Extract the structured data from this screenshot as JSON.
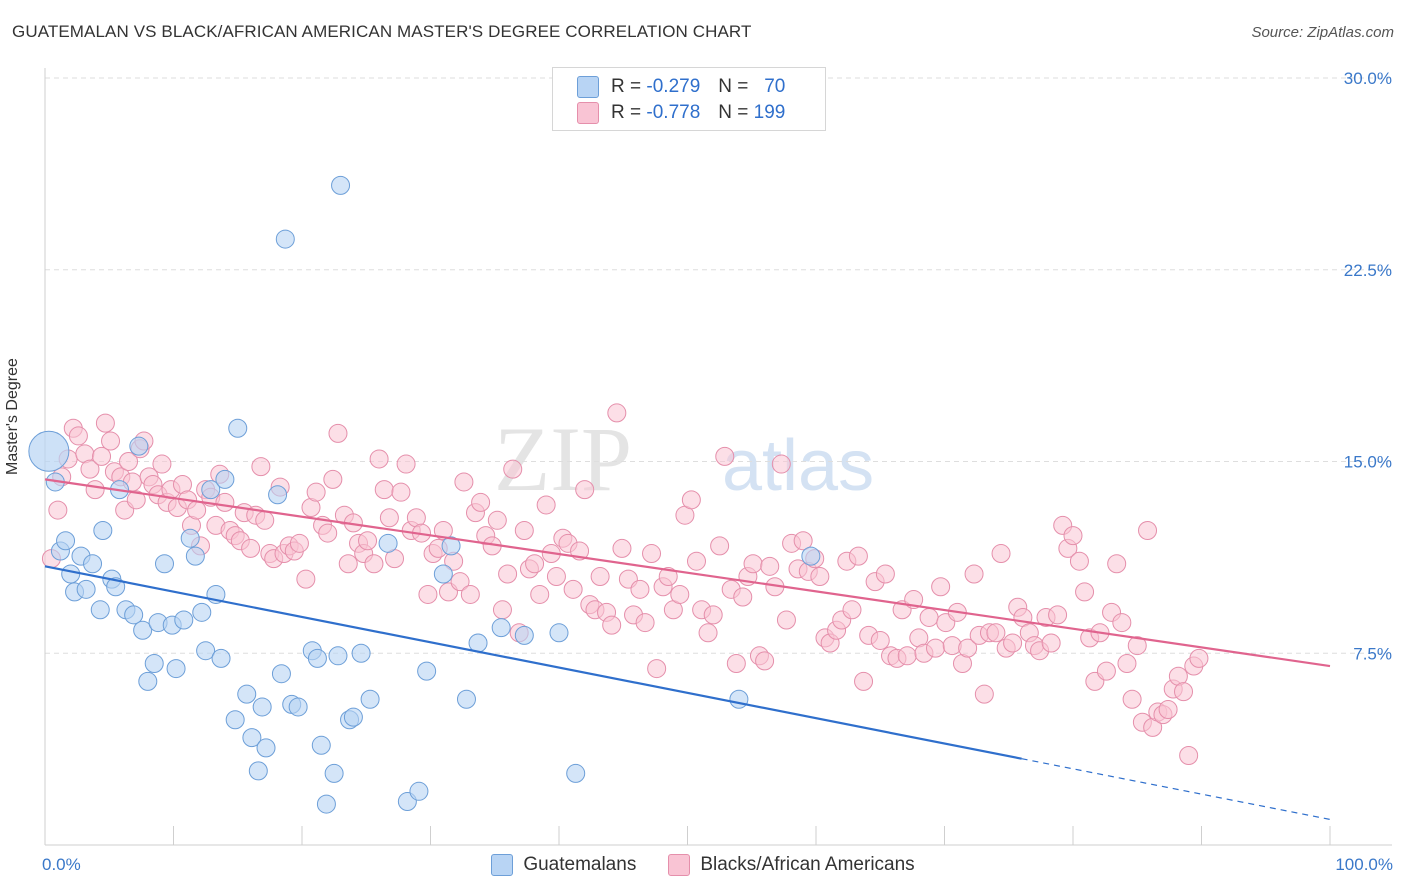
{
  "title": "GUATEMALAN VS BLACK/AFRICAN AMERICAN MASTER'S DEGREE CORRELATION CHART",
  "source": "Source: ZipAtlas.com",
  "watermark": {
    "zip": "ZIP",
    "atlas": "atlas"
  },
  "legend": {
    "r_label": "R =",
    "n_label": "N =",
    "rows": [
      {
        "name": "Guatemalans",
        "r": "-0.279",
        "n": "70"
      },
      {
        "name": "Blacks/African Americans",
        "r": "-0.778",
        "n": "199"
      }
    ]
  },
  "colors": {
    "blue_fill": "#b8d4f4",
    "blue_stroke": "#6d9fd8",
    "blue_line": "#2f6fcc",
    "pink_fill": "#f9c4d4",
    "pink_stroke": "#e58fab",
    "pink_line": "#e0648e",
    "tick_label": "#3a78c9",
    "grid": "#dedede"
  },
  "chart_data": {
    "type": "scatter",
    "title": "GUATEMALAN VS BLACK/AFRICAN AMERICAN MASTER'S DEGREE CORRELATION CHART",
    "xlabel": "",
    "ylabel": "Master's Degree",
    "xlim": [
      0,
      100
    ],
    "ylim": [
      0,
      30
    ],
    "x_tick_labels": [
      "0.0%",
      "100.0%"
    ],
    "y_ticks": [
      7.5,
      15.0,
      22.5,
      30.0
    ],
    "y_tick_labels": [
      "7.5%",
      "15.0%",
      "22.5%",
      "30.0%"
    ],
    "series": [
      {
        "name": "Guatemalans",
        "r": -0.279,
        "n": 70,
        "trend": {
          "x0": 0,
          "y0": 10.9,
          "x1": 100,
          "y1": 1.0,
          "solid_until_x": 76
        },
        "points": [
          [
            0.3,
            15.4,
            "big"
          ],
          [
            0.8,
            14.2
          ],
          [
            1.2,
            11.5
          ],
          [
            1.6,
            11.9
          ],
          [
            2.0,
            10.6
          ],
          [
            2.3,
            9.9
          ],
          [
            2.8,
            11.3
          ],
          [
            3.2,
            10.0
          ],
          [
            3.7,
            11.0
          ],
          [
            4.3,
            9.2
          ],
          [
            4.5,
            12.3
          ],
          [
            5.2,
            10.4
          ],
          [
            5.5,
            10.1
          ],
          [
            5.8,
            13.9
          ],
          [
            6.3,
            9.2
          ],
          [
            6.9,
            9.0
          ],
          [
            7.3,
            15.6
          ],
          [
            7.6,
            8.4
          ],
          [
            8.0,
            6.4
          ],
          [
            8.5,
            7.1
          ],
          [
            8.8,
            8.7
          ],
          [
            9.3,
            11.0
          ],
          [
            9.9,
            8.6
          ],
          [
            10.2,
            6.9
          ],
          [
            10.8,
            8.8
          ],
          [
            11.3,
            12.0
          ],
          [
            11.7,
            11.3
          ],
          [
            12.2,
            9.1
          ],
          [
            12.5,
            7.6
          ],
          [
            12.9,
            13.9
          ],
          [
            13.3,
            9.8
          ],
          [
            13.7,
            7.3
          ],
          [
            14.0,
            14.3
          ],
          [
            14.8,
            4.9
          ],
          [
            15.0,
            16.3
          ],
          [
            15.7,
            5.9
          ],
          [
            16.1,
            4.2
          ],
          [
            16.6,
            2.9
          ],
          [
            16.9,
            5.4
          ],
          [
            17.2,
            3.8
          ],
          [
            18.1,
            13.7
          ],
          [
            18.4,
            6.7
          ],
          [
            18.7,
            23.7
          ],
          [
            19.2,
            5.5
          ],
          [
            19.7,
            5.4
          ],
          [
            20.8,
            7.6
          ],
          [
            21.2,
            7.3
          ],
          [
            21.5,
            3.9
          ],
          [
            21.9,
            1.6
          ],
          [
            22.5,
            2.8
          ],
          [
            22.8,
            7.4
          ],
          [
            23.0,
            25.8
          ],
          [
            23.7,
            4.9
          ],
          [
            24.0,
            5.0
          ],
          [
            24.6,
            7.5
          ],
          [
            25.3,
            5.7
          ],
          [
            26.7,
            11.8
          ],
          [
            28.2,
            1.7
          ],
          [
            29.1,
            2.1
          ],
          [
            29.7,
            6.8
          ],
          [
            31.0,
            10.6
          ],
          [
            31.6,
            11.7
          ],
          [
            32.8,
            5.7
          ],
          [
            33.7,
            7.9
          ],
          [
            35.5,
            8.5
          ],
          [
            37.3,
            8.2
          ],
          [
            40.0,
            8.3
          ],
          [
            41.3,
            2.8
          ],
          [
            54.0,
            5.7
          ],
          [
            59.6,
            11.3
          ]
        ]
      },
      {
        "name": "Blacks/African Americans",
        "r": -0.778,
        "n": 199,
        "trend": {
          "x0": 0,
          "y0": 14.3,
          "x1": 100,
          "y1": 7.0
        },
        "points": [
          [
            0.5,
            11.2
          ],
          [
            1.0,
            13.1
          ],
          [
            1.3,
            14.4
          ],
          [
            1.8,
            15.1
          ],
          [
            2.2,
            16.3
          ],
          [
            2.6,
            16.0
          ],
          [
            3.1,
            15.3
          ],
          [
            3.5,
            14.7
          ],
          [
            3.9,
            13.9
          ],
          [
            4.4,
            15.2
          ],
          [
            4.7,
            16.5
          ],
          [
            5.1,
            15.8
          ],
          [
            5.4,
            14.6
          ],
          [
            5.9,
            14.4
          ],
          [
            6.2,
            13.1
          ],
          [
            6.5,
            15.0
          ],
          [
            6.8,
            14.2
          ],
          [
            7.1,
            13.5
          ],
          [
            7.4,
            15.5
          ],
          [
            7.7,
            15.8
          ],
          [
            8.1,
            14.4
          ],
          [
            8.4,
            14.1
          ],
          [
            8.8,
            13.7
          ],
          [
            9.1,
            14.9
          ],
          [
            9.5,
            13.4
          ],
          [
            9.8,
            13.9
          ],
          [
            10.3,
            13.2
          ],
          [
            10.7,
            14.1
          ],
          [
            11.1,
            13.5
          ],
          [
            11.4,
            12.5
          ],
          [
            11.8,
            13.1
          ],
          [
            12.1,
            11.7
          ],
          [
            12.5,
            13.9
          ],
          [
            12.9,
            13.6
          ],
          [
            13.3,
            12.5
          ],
          [
            13.6,
            14.5
          ],
          [
            14.0,
            13.4
          ],
          [
            14.4,
            12.3
          ],
          [
            14.8,
            12.1
          ],
          [
            15.2,
            11.9
          ],
          [
            15.5,
            13.0
          ],
          [
            16.0,
            11.6
          ],
          [
            16.4,
            12.9
          ],
          [
            16.8,
            14.8
          ],
          [
            17.1,
            12.7
          ],
          [
            17.5,
            11.4
          ],
          [
            17.8,
            11.2
          ],
          [
            18.3,
            14.0
          ],
          [
            18.6,
            11.4
          ],
          [
            19.0,
            11.7
          ],
          [
            19.4,
            11.5
          ],
          [
            19.8,
            11.8
          ],
          [
            20.3,
            10.4
          ],
          [
            20.7,
            13.2
          ],
          [
            21.1,
            13.8
          ],
          [
            21.6,
            12.5
          ],
          [
            22.0,
            12.2
          ],
          [
            22.4,
            14.3
          ],
          [
            22.8,
            16.1
          ],
          [
            23.3,
            12.9
          ],
          [
            23.6,
            11.0
          ],
          [
            24.0,
            12.6
          ],
          [
            24.4,
            11.8
          ],
          [
            24.8,
            11.4
          ],
          [
            25.1,
            11.9
          ],
          [
            25.6,
            11.0
          ],
          [
            26.0,
            15.1
          ],
          [
            26.4,
            13.9
          ],
          [
            26.8,
            12.8
          ],
          [
            27.2,
            11.2
          ],
          [
            27.7,
            13.8
          ],
          [
            28.1,
            14.9
          ],
          [
            28.5,
            12.3
          ],
          [
            28.9,
            12.8
          ],
          [
            29.3,
            12.2
          ],
          [
            29.8,
            9.8
          ],
          [
            30.2,
            11.4
          ],
          [
            30.6,
            11.6
          ],
          [
            31.0,
            12.3
          ],
          [
            31.4,
            9.9
          ],
          [
            31.8,
            11.1
          ],
          [
            32.3,
            10.3
          ],
          [
            32.6,
            14.2
          ],
          [
            33.1,
            9.8
          ],
          [
            33.5,
            13.0
          ],
          [
            33.9,
            13.4
          ],
          [
            34.3,
            12.1
          ],
          [
            34.8,
            11.7
          ],
          [
            35.2,
            12.7
          ],
          [
            35.6,
            9.2
          ],
          [
            36.0,
            10.6
          ],
          [
            36.4,
            14.7
          ],
          [
            36.9,
            8.3
          ],
          [
            37.3,
            12.3
          ],
          [
            37.7,
            10.8
          ],
          [
            38.1,
            11.0
          ],
          [
            38.5,
            9.8
          ],
          [
            39.0,
            13.3
          ],
          [
            39.4,
            11.4
          ],
          [
            39.8,
            10.5
          ],
          [
            40.3,
            12.0
          ],
          [
            40.7,
            11.8
          ],
          [
            41.1,
            10.0
          ],
          [
            41.6,
            11.5
          ],
          [
            42.0,
            13.9
          ],
          [
            42.4,
            9.4
          ],
          [
            42.8,
            9.2
          ],
          [
            43.2,
            10.5
          ],
          [
            43.7,
            9.1
          ],
          [
            44.1,
            8.6
          ],
          [
            44.5,
            16.9
          ],
          [
            44.9,
            11.6
          ],
          [
            45.4,
            10.4
          ],
          [
            45.8,
            9.0
          ],
          [
            46.3,
            10.0
          ],
          [
            46.7,
            8.7
          ],
          [
            47.2,
            11.4
          ],
          [
            47.6,
            6.9
          ],
          [
            48.1,
            10.1
          ],
          [
            48.5,
            10.5
          ],
          [
            48.9,
            9.2
          ],
          [
            49.4,
            9.8
          ],
          [
            49.8,
            12.9
          ],
          [
            50.3,
            13.5
          ],
          [
            50.7,
            11.1
          ],
          [
            51.1,
            9.2
          ],
          [
            51.6,
            8.3
          ],
          [
            52.0,
            9.0
          ],
          [
            52.5,
            11.7
          ],
          [
            52.9,
            15.2
          ],
          [
            53.4,
            10.0
          ],
          [
            53.8,
            7.1
          ],
          [
            54.3,
            9.7
          ],
          [
            54.7,
            10.5
          ],
          [
            55.1,
            11.0
          ],
          [
            55.6,
            7.4
          ],
          [
            56.0,
            7.2
          ],
          [
            56.4,
            10.9
          ],
          [
            56.8,
            10.1
          ],
          [
            57.3,
            14.9
          ],
          [
            57.7,
            8.8
          ],
          [
            58.1,
            11.8
          ],
          [
            58.6,
            10.8
          ],
          [
            59.0,
            11.9
          ],
          [
            59.4,
            10.7
          ],
          [
            59.9,
            11.2
          ],
          [
            60.3,
            10.5
          ],
          [
            60.7,
            8.1
          ],
          [
            61.1,
            7.9
          ],
          [
            61.6,
            8.4
          ],
          [
            62.0,
            8.8
          ],
          [
            62.4,
            11.1
          ],
          [
            62.8,
            9.2
          ],
          [
            63.3,
            11.3
          ],
          [
            63.7,
            6.4
          ],
          [
            64.1,
            8.2
          ],
          [
            64.6,
            10.3
          ],
          [
            65.0,
            8.0
          ],
          [
            65.4,
            10.6
          ],
          [
            65.8,
            7.4
          ],
          [
            66.3,
            7.3
          ],
          [
            66.7,
            9.2
          ],
          [
            67.1,
            7.4
          ],
          [
            67.6,
            9.6
          ],
          [
            68.0,
            8.1
          ],
          [
            68.4,
            7.5
          ],
          [
            68.8,
            8.9
          ],
          [
            69.3,
            7.7
          ],
          [
            69.7,
            10.1
          ],
          [
            70.1,
            8.7
          ],
          [
            70.6,
            7.8
          ],
          [
            71.0,
            9.1
          ],
          [
            71.4,
            7.1
          ],
          [
            71.8,
            7.7
          ],
          [
            72.3,
            10.6
          ],
          [
            72.7,
            8.2
          ],
          [
            73.1,
            5.9
          ],
          [
            73.5,
            8.3
          ],
          [
            74.0,
            8.3
          ],
          [
            74.4,
            11.4
          ],
          [
            74.8,
            7.7
          ],
          [
            75.3,
            7.9
          ],
          [
            75.7,
            9.3
          ],
          [
            76.1,
            8.9
          ],
          [
            76.6,
            8.3
          ],
          [
            77.0,
            7.8
          ],
          [
            77.4,
            7.6
          ],
          [
            77.9,
            8.9
          ],
          [
            78.3,
            7.9
          ],
          [
            78.8,
            9.0
          ],
          [
            79.2,
            12.5
          ],
          [
            79.6,
            11.6
          ],
          [
            80.0,
            12.1
          ],
          [
            80.5,
            11.1
          ],
          [
            80.9,
            9.9
          ],
          [
            81.3,
            8.1
          ],
          [
            81.7,
            6.4
          ],
          [
            82.1,
            8.3
          ],
          [
            82.6,
            6.8
          ],
          [
            83.0,
            9.1
          ],
          [
            83.4,
            11.0
          ],
          [
            83.8,
            8.7
          ],
          [
            84.2,
            7.1
          ],
          [
            84.6,
            5.7
          ],
          [
            85.0,
            7.8
          ],
          [
            85.4,
            4.8
          ],
          [
            85.8,
            12.3
          ],
          [
            86.2,
            4.6
          ],
          [
            86.6,
            5.2
          ],
          [
            87.0,
            5.1
          ],
          [
            87.4,
            5.3
          ],
          [
            87.8,
            6.1
          ],
          [
            88.2,
            6.6
          ],
          [
            88.6,
            6.0
          ],
          [
            89.0,
            3.5
          ],
          [
            89.4,
            7.0
          ],
          [
            89.8,
            7.3
          ]
        ]
      }
    ]
  }
}
